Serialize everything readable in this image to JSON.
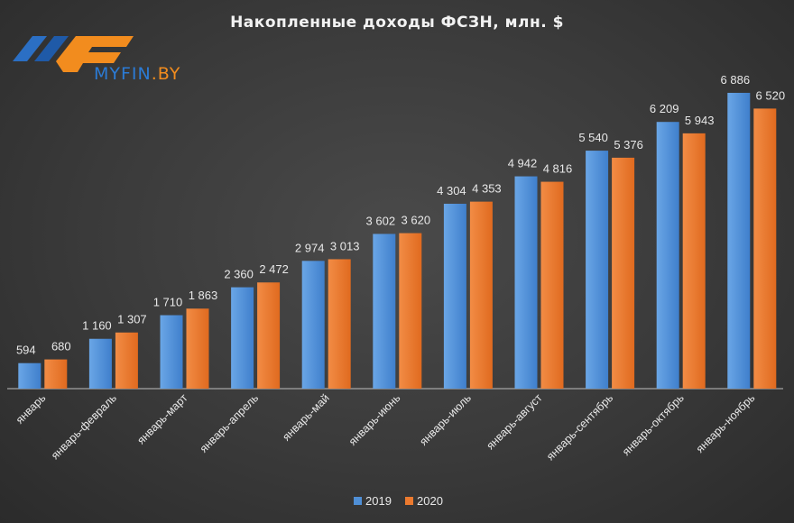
{
  "logo": {
    "text": "MYFIN",
    "suffix": ".BY"
  },
  "colors": {
    "s2019": "#4f8fd6",
    "s2020": "#ec7a2f",
    "axis": "#bfbfbf"
  },
  "chart_data": {
    "type": "bar",
    "title": "Накопленные  доходы ФСЗН,  млн. $",
    "xlabel": "",
    "ylabel": "",
    "ylim": [
      0,
      7200
    ],
    "grid": false,
    "legend_position": "bottom",
    "categories": [
      "январь",
      "январь-февраль",
      "январь-март",
      "январь-апрель",
      "январь-май",
      "январь-июнь",
      "январь-июль",
      "январь-август",
      "январь-сентябрь",
      "январь-октябрь",
      "январь-ноябрь"
    ],
    "series": [
      {
        "name": "2019",
        "values": [
          594,
          1160,
          1710,
          2360,
          2974,
          3602,
          4304,
          4942,
          5540,
          6209,
          6886
        ],
        "labels": [
          "594",
          "1 160",
          "1 710",
          "2 360",
          "2 974",
          "3 602",
          "4 304",
          "4 942",
          "5 540",
          "6 209",
          "6 886"
        ]
      },
      {
        "name": "2020",
        "values": [
          680,
          1307,
          1863,
          2472,
          3013,
          3620,
          4353,
          4816,
          5376,
          5943,
          6520
        ],
        "labels": [
          "680",
          "1 307",
          "1 863",
          "2 472",
          "3 013",
          "3 620",
          "4 353",
          "4 816",
          "5 376",
          "5 943",
          "6 520"
        ]
      }
    ]
  }
}
